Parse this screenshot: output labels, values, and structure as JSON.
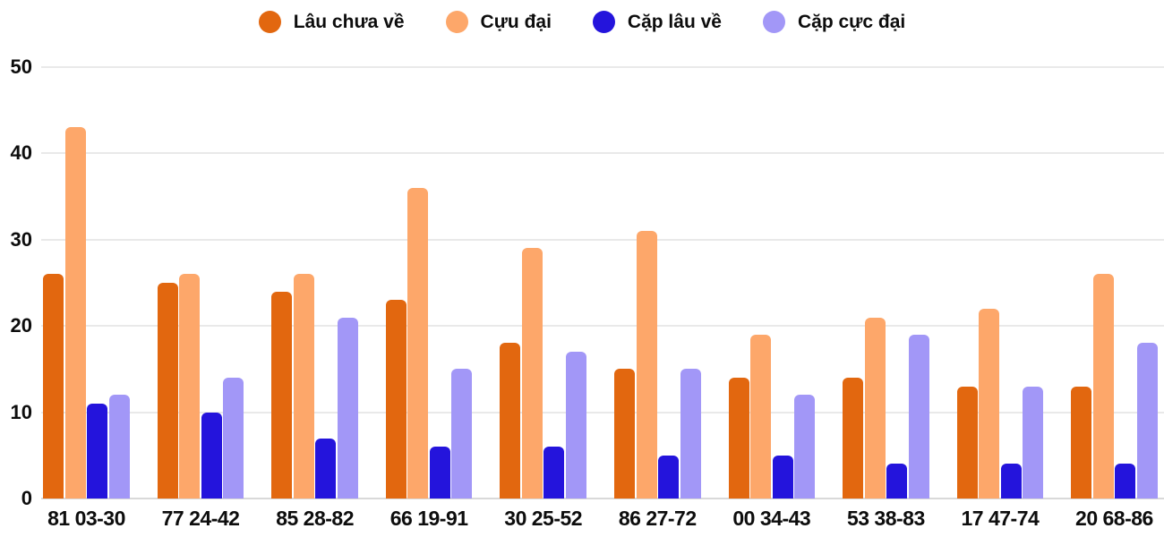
{
  "legend": [
    {
      "label": "Lâu chưa về",
      "color": "#e2670f"
    },
    {
      "label": "Cựu đại",
      "color": "#fda76a"
    },
    {
      "label": "Cặp lâu về",
      "color": "#2414dc"
    },
    {
      "label": "Cặp cực đại",
      "color": "#a297f7"
    }
  ],
  "chart_data": {
    "type": "bar",
    "title": "",
    "xlabel": "",
    "ylabel": "",
    "categories": [
      "81 03-30",
      "77 24-42",
      "85 28-82",
      "66 19-91",
      "30 25-52",
      "86 27-72",
      "00 34-43",
      "53 38-83",
      "17 47-74",
      "20 68-86"
    ],
    "series": [
      {
        "name": "Lâu chưa về",
        "color": "#e2670f",
        "values": [
          26,
          25,
          24,
          23,
          18,
          15,
          14,
          14,
          13,
          13
        ]
      },
      {
        "name": "Cựu đại",
        "color": "#fda76a",
        "values": [
          43,
          26,
          26,
          36,
          29,
          31,
          19,
          21,
          22,
          26
        ]
      },
      {
        "name": "Cặp lâu về",
        "color": "#2414dc",
        "values": [
          11,
          10,
          7,
          6,
          6,
          5,
          5,
          4,
          4,
          4
        ]
      },
      {
        "name": "Cặp cực đại",
        "color": "#a297f7",
        "values": [
          12,
          14,
          21,
          15,
          17,
          15,
          12,
          19,
          13,
          18
        ]
      }
    ],
    "ylim": [
      0,
      50
    ],
    "yticks": [
      0,
      10,
      20,
      30,
      40,
      50
    ],
    "grid": true,
    "legend_position": "top"
  },
  "colors": {
    "grid": "#e9e9e9",
    "axis": "#d9d9d9",
    "text": "#0d0d0d",
    "background": "#ffffff"
  }
}
